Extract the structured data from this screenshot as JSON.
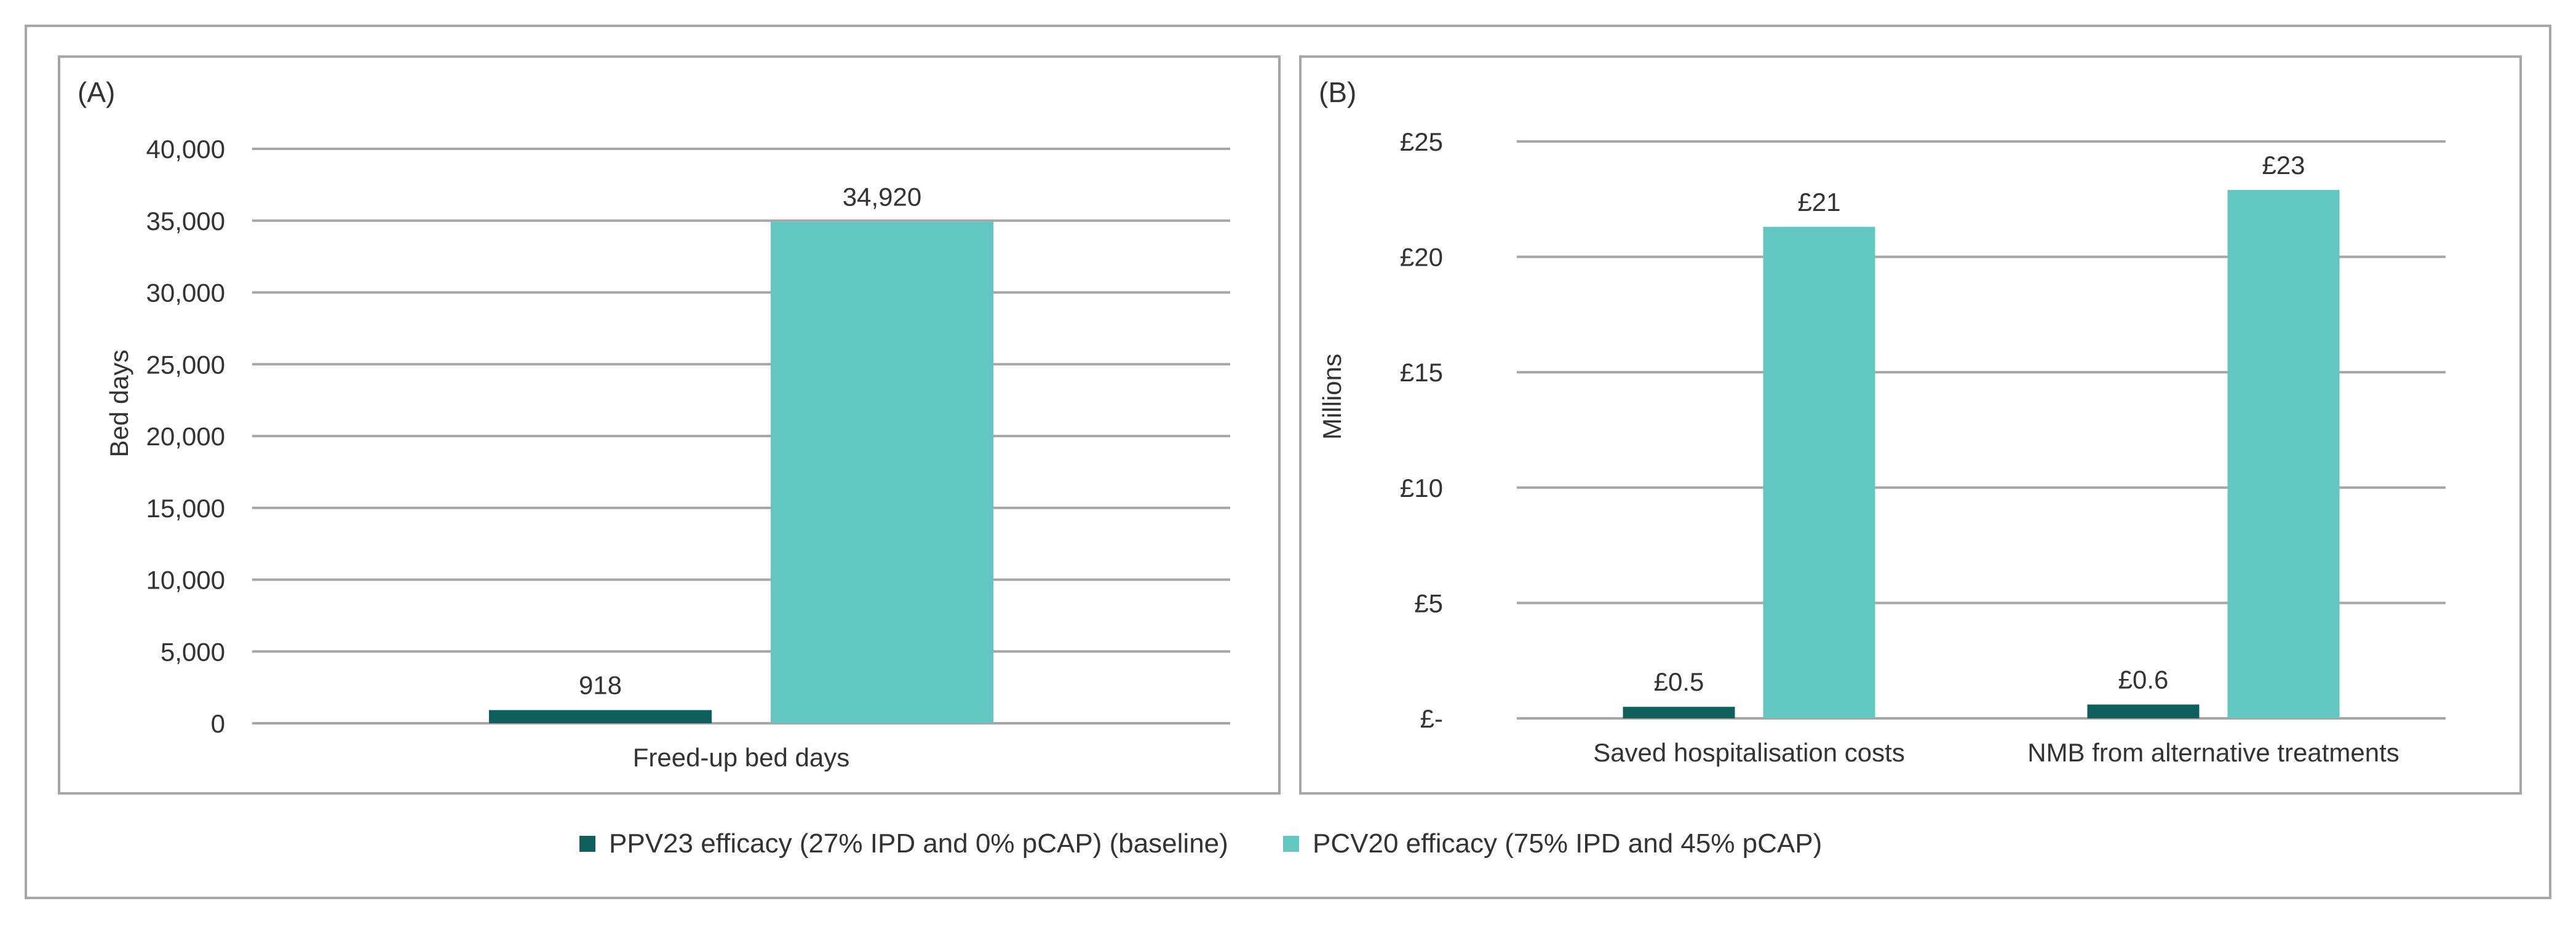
{
  "colors": {
    "baseline": "#0f5f5f",
    "pcv20": "#62c6c1",
    "grid": "#a6a6a6",
    "frame": "#a6a6a6",
    "text": "#333333"
  },
  "legend": [
    {
      "label": "PPV23 efficacy (27% IPD and 0% pCAP) (baseline)",
      "color_key": "baseline"
    },
    {
      "label": "PCV20 efficacy (75% IPD and 45% pCAP)",
      "color_key": "pcv20"
    }
  ],
  "chart_data": [
    {
      "panel": "(A)",
      "type": "bar",
      "categories": [
        "Freed-up bed days"
      ],
      "series": [
        {
          "name": "PPV23 efficacy (27% IPD and 0% pCAP) (baseline)",
          "values": [
            918
          ],
          "labels": [
            "918"
          ]
        },
        {
          "name": "PCV20 efficacy (75% IPD and 45% pCAP)",
          "values": [
            34920
          ],
          "labels": [
            "34,920"
          ]
        }
      ],
      "ylabel": "Bed days",
      "xlabel": "",
      "ylim": [
        0,
        40000
      ],
      "yticks": [
        0,
        5000,
        10000,
        15000,
        20000,
        25000,
        30000,
        35000,
        40000
      ],
      "ytick_labels": [
        "0",
        "5,000",
        "10,000",
        "15,000",
        "20,000",
        "25,000",
        "30,000",
        "35,000",
        "40,000"
      ],
      "grid": true
    },
    {
      "panel": "(B)",
      "type": "bar",
      "categories": [
        "Saved hospitalisation costs",
        "NMB from alternative treatments"
      ],
      "series": [
        {
          "name": "PPV23 efficacy (27% IPD and 0% pCAP) (baseline)",
          "values": [
            0.5,
            0.6
          ],
          "labels": [
            "£0.5",
            "£0.6"
          ]
        },
        {
          "name": "PCV20 efficacy (75% IPD and 45% pCAP)",
          "values": [
            21.3,
            22.9
          ],
          "labels": [
            "£21",
            "£23"
          ]
        }
      ],
      "ylabel": "Millions",
      "xlabel": "",
      "ylim": [
        0,
        25
      ],
      "yticks": [
        0,
        5,
        10,
        15,
        20,
        25
      ],
      "ytick_labels": [
        "£-",
        "£5",
        "£10",
        "£15",
        "£20",
        "£25"
      ],
      "grid": true
    }
  ]
}
